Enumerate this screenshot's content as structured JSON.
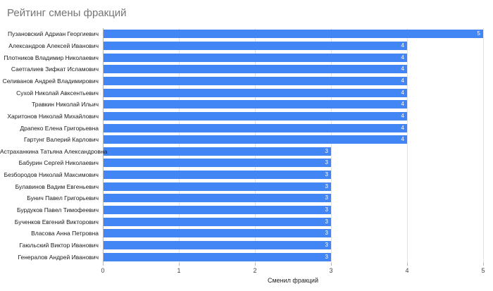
{
  "chart_data": {
    "type": "bar",
    "orientation": "horizontal",
    "title": "Рейтинг смены фракций",
    "xlabel": "Сменил фракций",
    "ylabel": "",
    "categories": [
      "Пузановский Адриан Георгиевич",
      "Александров Алексей Иванович",
      "Плотников Владимир Николаевич",
      "Саетгалиев Зифкат Исламович",
      "Селиванов Андрей Владимирович",
      "Сухой Николай Авксентьевич",
      "Травкин Николай Ильич",
      "Харитонов Николай Михайлович",
      "Драпеко Елена Григорьевна",
      "Гартунг Валерий Карлович",
      "Астраханкина Татьяна Александровна",
      "Бабурин Сергей Николаевич",
      "Безбородов Николай Максимович",
      "Булавинов Вадим Евгеньевич",
      "Бунич Павел Григорьевич",
      "Бурдуков Павел Тимофеевич",
      "Бученков Евгений Викторович",
      "Власова Анна Петровна",
      "Гаюльский Виктор Иванович",
      "Генералов Андрей Иванович"
    ],
    "values": [
      5,
      4,
      4,
      4,
      4,
      4,
      4,
      4,
      4,
      4,
      3,
      3,
      3,
      3,
      3,
      3,
      3,
      3,
      3,
      3
    ],
    "value_labels": [
      "5",
      "4",
      "4",
      "4",
      "4",
      "4",
      "4",
      "4",
      "4",
      "4",
      "3",
      "3",
      "3",
      "3",
      "3",
      "3",
      "3",
      "3",
      "3",
      "3"
    ],
    "xlim": [
      0,
      5
    ],
    "xticks": [
      0,
      1,
      2,
      3,
      4,
      5
    ],
    "xtick_labels": [
      "0",
      "1",
      "2",
      "3",
      "4",
      "5"
    ],
    "grid": true,
    "legend": "none",
    "colors": {
      "bar": "#4285f4",
      "value_label": "#ffffff",
      "title": "#757575",
      "gridline": "#e3e3e3",
      "baseline": "#b7b7b7",
      "category_label": "#1a1a1a",
      "tick_label": "#424242",
      "axis_title": "#212121",
      "background": "#ffffff"
    }
  }
}
